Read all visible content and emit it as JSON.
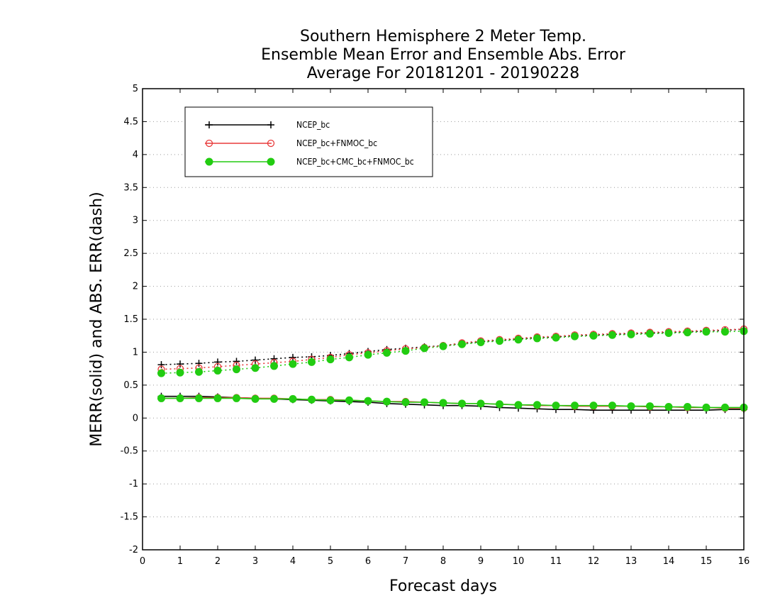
{
  "chart_data": {
    "type": "line",
    "title": [
      "Southern Hemisphere 2 Meter Temp.",
      "Ensemble Mean Error and Ensemble Abs. Error",
      "Average For 20181201 - 20190228"
    ],
    "xlabel": "Forecast days",
    "ylabel": "MERR(solid) and ABS. ERR(dash)",
    "xlim": [
      0,
      16
    ],
    "ylim": [
      -2,
      5
    ],
    "xticks": [
      "0",
      "1",
      "2",
      "3",
      "4",
      "5",
      "6",
      "7",
      "8",
      "9",
      "10",
      "11",
      "12",
      "13",
      "14",
      "15",
      "16"
    ],
    "yticks": [
      "-2",
      "-1.5",
      "-1",
      "-0.5",
      "0",
      "0.5",
      "1",
      "1.5",
      "2",
      "2.5",
      "3",
      "3.5",
      "4",
      "4.5",
      "5"
    ],
    "grid": "horizontal dotted",
    "legend_position": "top-left",
    "x": [
      0.5,
      1,
      1.5,
      2,
      2.5,
      3,
      3.5,
      4,
      4.5,
      5,
      5.5,
      6,
      6.5,
      7,
      7.5,
      8,
      8.5,
      9,
      9.5,
      10,
      10.5,
      11,
      11.5,
      12,
      12.5,
      13,
      13.5,
      14,
      14.5,
      15,
      15.5,
      16
    ],
    "series": [
      {
        "name": "NCEP_bc",
        "color": "#000000",
        "marker": "plus",
        "merr": [
          0.33,
          0.33,
          0.33,
          0.32,
          0.31,
          0.3,
          0.29,
          0.28,
          0.27,
          0.26,
          0.25,
          0.24,
          0.22,
          0.21,
          0.2,
          0.19,
          0.19,
          0.18,
          0.16,
          0.15,
          0.14,
          0.13,
          0.13,
          0.12,
          0.12,
          0.12,
          0.12,
          0.12,
          0.12,
          0.12,
          0.13,
          0.13
        ],
        "abs_err": [
          0.81,
          0.82,
          0.83,
          0.85,
          0.86,
          0.88,
          0.9,
          0.92,
          0.93,
          0.95,
          0.98,
          1.01,
          1.04,
          1.06,
          1.08,
          1.1,
          1.13,
          1.16,
          1.18,
          1.2,
          1.22,
          1.23,
          1.25,
          1.26,
          1.27,
          1.28,
          1.29,
          1.3,
          1.31,
          1.32,
          1.33,
          1.35
        ]
      },
      {
        "name": "NCEP_bc+FNMOC_bc",
        "color": "#e83a3a",
        "marker": "open-circle",
        "merr": [
          0.3,
          0.3,
          0.31,
          0.31,
          0.31,
          0.3,
          0.3,
          0.29,
          0.28,
          0.28,
          0.27,
          0.26,
          0.25,
          0.25,
          0.24,
          0.23,
          0.22,
          0.22,
          0.21,
          0.2,
          0.19,
          0.19,
          0.18,
          0.18,
          0.18,
          0.18,
          0.17,
          0.17,
          0.16,
          0.16,
          0.15,
          0.15
        ],
        "abs_err": [
          0.74,
          0.75,
          0.76,
          0.78,
          0.8,
          0.82,
          0.84,
          0.86,
          0.89,
          0.92,
          0.96,
          0.99,
          1.02,
          1.05,
          1.07,
          1.1,
          1.14,
          1.17,
          1.19,
          1.21,
          1.23,
          1.24,
          1.26,
          1.27,
          1.28,
          1.29,
          1.3,
          1.31,
          1.32,
          1.33,
          1.34,
          1.35
        ]
      },
      {
        "name": "NCEP_bc+CMC_bc+FNMOC_bc",
        "color": "#22cc11",
        "marker": "filled-circle",
        "merr": [
          0.3,
          0.3,
          0.3,
          0.3,
          0.3,
          0.29,
          0.29,
          0.29,
          0.28,
          0.27,
          0.27,
          0.26,
          0.25,
          0.24,
          0.24,
          0.23,
          0.22,
          0.22,
          0.21,
          0.2,
          0.2,
          0.19,
          0.19,
          0.19,
          0.19,
          0.18,
          0.18,
          0.17,
          0.17,
          0.16,
          0.16,
          0.16
        ],
        "abs_err": [
          0.68,
          0.69,
          0.7,
          0.72,
          0.74,
          0.76,
          0.79,
          0.82,
          0.85,
          0.89,
          0.92,
          0.96,
          0.99,
          1.02,
          1.06,
          1.09,
          1.12,
          1.15,
          1.17,
          1.19,
          1.21,
          1.22,
          1.24,
          1.25,
          1.26,
          1.27,
          1.28,
          1.29,
          1.3,
          1.31,
          1.31,
          1.32
        ]
      }
    ]
  }
}
